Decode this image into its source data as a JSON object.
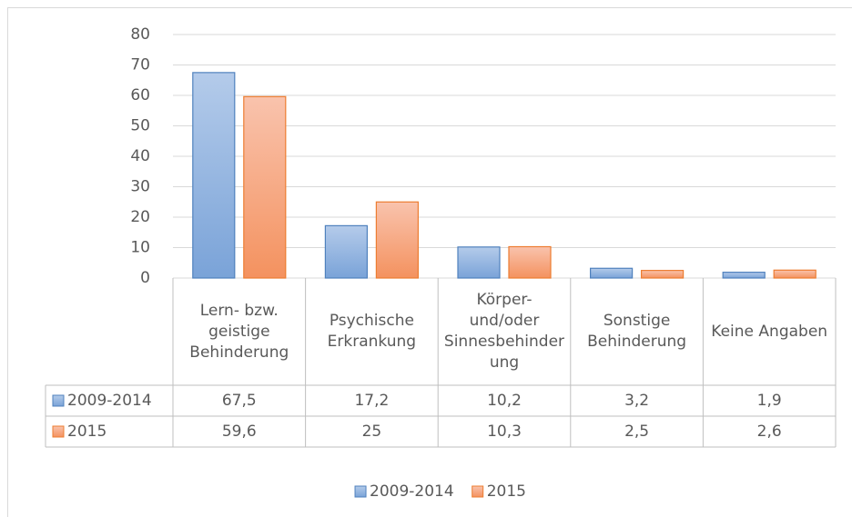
{
  "chart_data": {
    "type": "bar",
    "categories": [
      "Lern- bzw. geistige Behinderung",
      "Psychische Erkrankung",
      "Körper- und/oder Sinnesbehinderung",
      "Sonstige Behinderung",
      "Keine Angaben"
    ],
    "series": [
      {
        "name": "2009-2014",
        "color": "#4f81bd",
        "values": [
          67.5,
          17.2,
          10.2,
          3.2,
          1.9
        ],
        "value_labels": [
          "67,5",
          "17,2",
          "10,2",
          "3,2",
          "1,9"
        ]
      },
      {
        "name": "2015",
        "color": "#ed7d31",
        "values": [
          59.6,
          25,
          10.3,
          2.5,
          2.6
        ],
        "value_labels": [
          "59,6",
          "25",
          "10,3",
          "2,5",
          "2,6"
        ]
      }
    ],
    "ylim": [
      0,
      80
    ],
    "yticks": [
      0,
      10,
      20,
      30,
      40,
      50,
      60,
      70,
      80
    ],
    "grid": true,
    "legend": "bottom",
    "data_table": true
  }
}
